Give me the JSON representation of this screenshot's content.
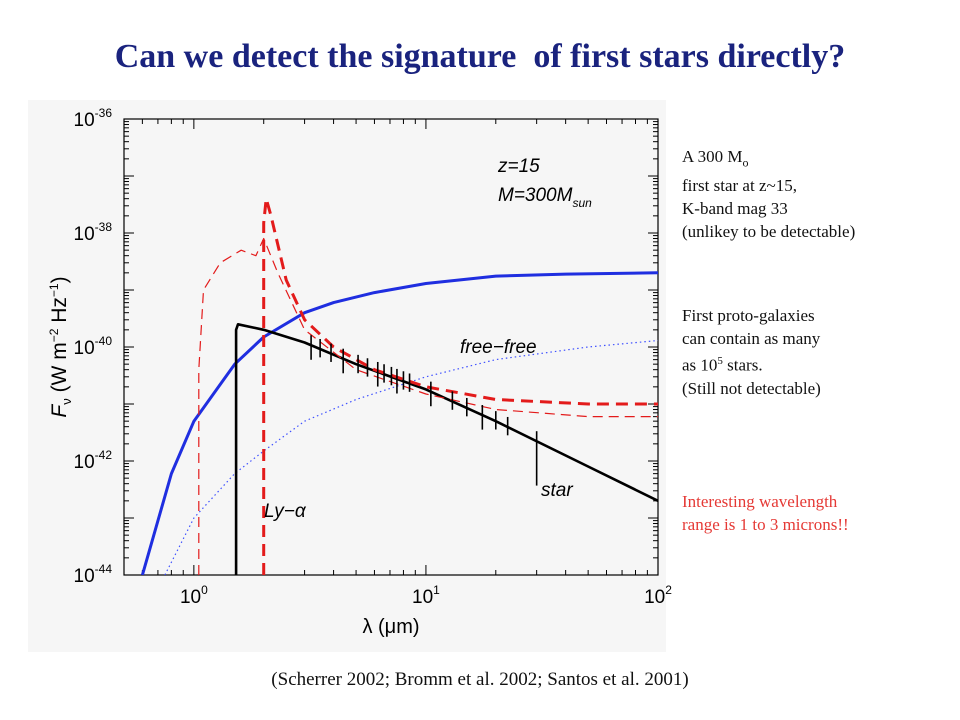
{
  "slide": {
    "title": "Can we detect the signature  of first stars directly?",
    "caption": "(Scherrer 2002; Bromm et al. 2002; Santos et al. 2001)"
  },
  "notes": {
    "first_star": {
      "line1_prefix": "A 300 M",
      "line1_symbol": "o",
      "line2": "first star at z~15,",
      "line3": "K-band mag 33",
      "line4": "(unlikey to be detectable)"
    },
    "proto_galaxies": {
      "line1": "First proto-galaxies",
      "line2": "can contain as many",
      "line3_prefix": "as 10",
      "line3_exp": "5",
      "line3_suffix": " stars.",
      "line4": "(Still not detectable)"
    },
    "interesting": {
      "line1": "Interesting wavelength",
      "line2": "range is 1 to 3 microns!!"
    }
  },
  "chart_data": {
    "type": "line",
    "xscale": "log",
    "yscale": "log",
    "xlim": [
      0.5,
      100
    ],
    "ylim": [
      1e-44,
      1e-36
    ],
    "x_tick_labels": [
      {
        "value": 1,
        "base": "10",
        "exp": "0"
      },
      {
        "value": 10,
        "base": "10",
        "exp": "1"
      },
      {
        "value": 100,
        "base": "10",
        "exp": "2"
      }
    ],
    "y_tick_labels": [
      {
        "value": 1e-36,
        "base": "10",
        "exp": "-36"
      },
      {
        "value": 1e-38,
        "base": "10",
        "exp": "-38"
      },
      {
        "value": 1e-40,
        "base": "10",
        "exp": "-40"
      },
      {
        "value": 1e-42,
        "base": "10",
        "exp": "-42"
      },
      {
        "value": 1e-44,
        "base": "10",
        "exp": "-44"
      }
    ],
    "xlabel": "λ (μm)",
    "ylabel": "F_ν (W m^-2 Hz^-1)",
    "annotations": {
      "params_z": "z=15",
      "params_m": "M=300M",
      "params_m_sub": "sun",
      "free_free_label": "free−free",
      "star_label": "star",
      "ly_alpha_label": "Ly−α"
    },
    "series": [
      {
        "key": "blue_thick",
        "color": "#1f2ee0",
        "style": "solid",
        "width": 3,
        "points": [
          [
            0.6,
            1e-44
          ],
          [
            0.8,
            6e-43
          ],
          [
            1,
            5e-42
          ],
          [
            1.5,
            5e-41
          ],
          [
            2,
            1.5e-40
          ],
          [
            3,
            4e-40
          ],
          [
            4,
            6e-40
          ],
          [
            6,
            9e-40
          ],
          [
            10,
            1.3e-39
          ],
          [
            20,
            1.75e-39
          ],
          [
            40,
            1.9e-39
          ],
          [
            100,
            2e-39
          ]
        ]
      },
      {
        "key": "blue_dotted",
        "color": "#3f51ff",
        "style": "dotted",
        "width": 1.2,
        "points": [
          [
            0.75,
            1e-44
          ],
          [
            1,
            1e-43
          ],
          [
            1.5,
            6e-43
          ],
          [
            2,
            1.5e-42
          ],
          [
            3,
            5e-42
          ],
          [
            5,
            1.2e-41
          ],
          [
            10,
            3e-41
          ],
          [
            20,
            6e-41
          ],
          [
            50,
            1e-40
          ],
          [
            100,
            1.3e-40
          ]
        ]
      },
      {
        "key": "star_black",
        "color": "#000000",
        "style": "solid",
        "width": 2.6,
        "points": [
          [
            1.52,
            1e-44
          ],
          [
            1.52,
            2e-40
          ],
          [
            1.55,
            2.5e-40
          ],
          [
            2,
            2e-40
          ],
          [
            3,
            1.2e-40
          ],
          [
            5,
            5e-41
          ],
          [
            10,
            1.8e-41
          ],
          [
            20,
            5e-42
          ],
          [
            50,
            8e-43
          ],
          [
            100,
            2e-43
          ]
        ]
      },
      {
        "key": "red_thick_dashed",
        "color": "#e31b1b",
        "style": "dashed",
        "width": 3,
        "points": [
          [
            2,
            1e-44
          ],
          [
            2,
            1.5e-38
          ],
          [
            2.05,
            4e-38
          ],
          [
            2.15,
            2e-38
          ],
          [
            2.5,
            1.5e-39
          ],
          [
            3,
            3e-40
          ],
          [
            4,
            1e-40
          ],
          [
            6,
            4e-41
          ],
          [
            10,
            2e-41
          ],
          [
            20,
            1.2e-41
          ],
          [
            50,
            1e-41
          ],
          [
            100,
            1e-41
          ]
        ]
      },
      {
        "key": "red_thin_dashed",
        "color": "#e31b1b",
        "style": "dashed",
        "width": 1.2,
        "points": [
          [
            1.05,
            1e-44
          ],
          [
            1.05,
            4e-41
          ],
          [
            1.1,
            1e-39
          ],
          [
            1.3,
            3e-39
          ],
          [
            1.6,
            5e-39
          ],
          [
            1.85,
            4e-39
          ],
          [
            2,
            8e-39
          ],
          [
            2.3,
            2e-39
          ],
          [
            3,
            2e-40
          ],
          [
            5,
            4e-41
          ],
          [
            10,
            1.5e-41
          ],
          [
            20,
            8e-42
          ],
          [
            50,
            6e-42
          ],
          [
            100,
            6e-42
          ]
        ]
      }
    ],
    "absorption_features_x": [
      3.2,
      3.5,
      3.9,
      4.4,
      5.1,
      5.6,
      6.2,
      6.6,
      7.1,
      7.5,
      8.0,
      8.5,
      10.5,
      13,
      15,
      17.5,
      20,
      22.5,
      30
    ],
    "grid": false,
    "legend": "none"
  }
}
